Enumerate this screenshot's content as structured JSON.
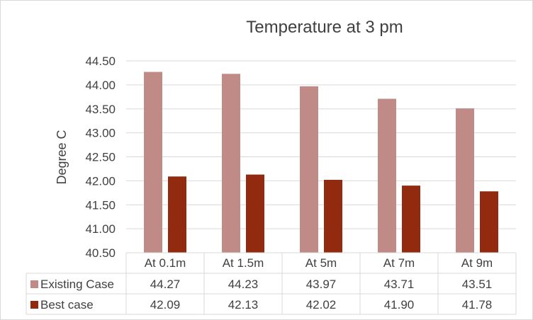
{
  "chart_data": {
    "type": "bar",
    "title": "Temperature at 3 pm",
    "xlabel": "",
    "ylabel": "Degree C",
    "ylim": [
      40.5,
      44.5
    ],
    "yticks": [
      "40.50",
      "41.00",
      "41.50",
      "42.00",
      "42.50",
      "43.00",
      "43.50",
      "44.00",
      "44.50"
    ],
    "grid": true,
    "legend": "data-table-left",
    "categories": [
      "At 0.1m",
      "At 1.5m",
      "At 5m",
      "At 7m",
      "At 9m"
    ],
    "series": [
      {
        "name": "Existing Case",
        "color": "#c08b87",
        "values": [
          44.27,
          44.23,
          43.97,
          43.71,
          43.51
        ],
        "labels": [
          "44.27",
          "44.23",
          "43.97",
          "43.71",
          "43.51"
        ]
      },
      {
        "name": "Best case",
        "color": "#912a0f",
        "values": [
          42.09,
          42.13,
          42.02,
          41.9,
          41.78
        ],
        "labels": [
          "42.09",
          "42.13",
          "42.02",
          "41.90",
          "41.78"
        ]
      }
    ]
  }
}
